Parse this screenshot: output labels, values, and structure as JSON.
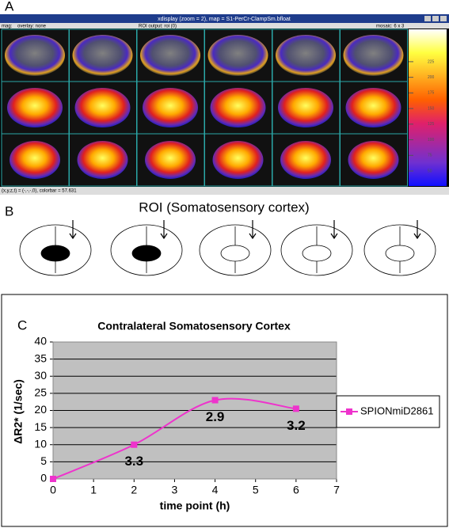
{
  "panel_a": {
    "label": "A",
    "window_title": "xdisplay (zoom = 2), map = S1-PerCr-ClampSm.bfloat",
    "fields": [
      "mag:",
      "overlay: none",
      "ROI output: roi (0)",
      "mosaic: 6 x 3"
    ],
    "colorbar_ticks": [
      225,
      200,
      175,
      150,
      125,
      100,
      75,
      50
    ],
    "status": "(x,y,z,t) = (-,-,-,0), colorbar = 57.631"
  },
  "panel_b": {
    "label": "B",
    "title": "ROI (Somatosensory cortex)"
  },
  "panel_c": {
    "label": "C"
  },
  "chart_data": {
    "type": "line",
    "title": "Contralateral Somatosensory Cortex",
    "x_label": "time point (h)",
    "y_label": "ΔR2* (1/sec)",
    "x": [
      0,
      2,
      4,
      6
    ],
    "series": [
      {
        "name": "SPIONmiD2861",
        "color": "#ee33cc",
        "values": [
          0,
          10,
          23,
          20.5
        ],
        "annotations": [
          null,
          "3.3",
          "2.9",
          "3.2"
        ]
      }
    ],
    "xlim": [
      0,
      7
    ],
    "xticks": [
      0,
      1,
      2,
      3,
      4,
      5,
      6,
      7
    ],
    "ylim": [
      0,
      40
    ],
    "yticks": [
      0,
      5,
      10,
      15,
      20,
      25,
      30,
      35,
      40
    ],
    "grid": true,
    "legend": "right",
    "plot_background": "#c0c0c0"
  }
}
